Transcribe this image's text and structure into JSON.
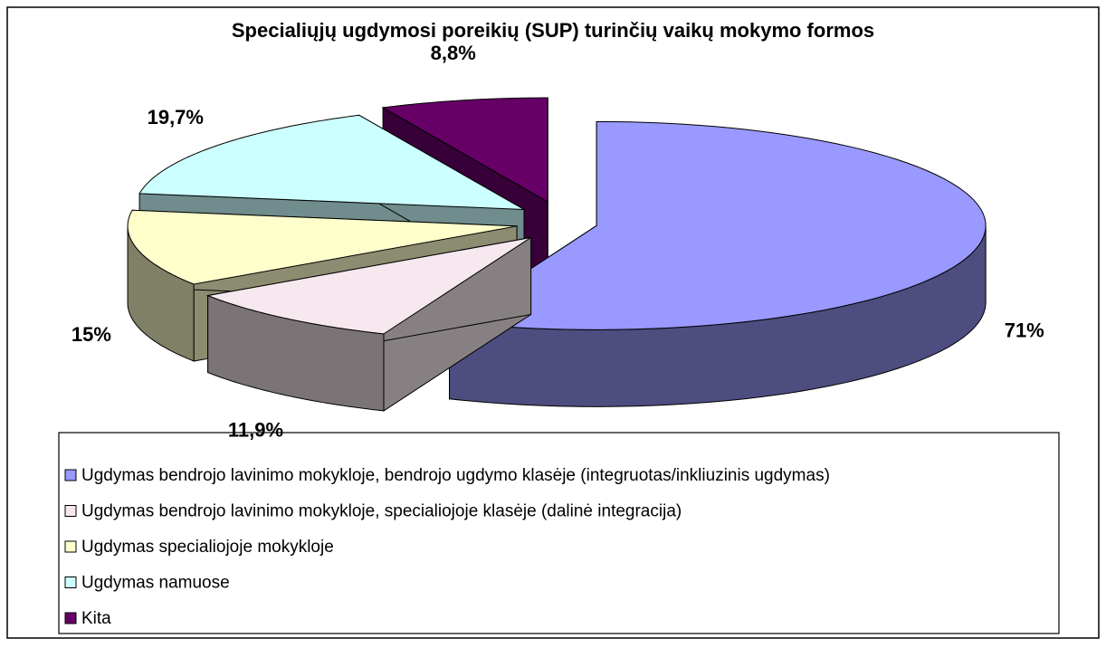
{
  "chart_data": {
    "type": "pie",
    "title": "Specialiųjų ugdymosi poreikių (SUP) turinčių vaikų mokymo formos",
    "categories": [
      "Ugdymas bendrojo lavinimo mokykloje, bendrojo ugdymo klasėje (integruotas/inkliuzinis ugdymas)",
      "Ugdymas bendrojo lavinimo mokykloje, specialiojoje klasėje (dalinė integracija)",
      "Ugdymas specialiojoje mokykloje",
      "Ugdymas namuose",
      "Kita"
    ],
    "values": [
      71,
      11.9,
      15,
      19.7,
      8.8
    ],
    "value_labels": [
      "71%",
      "11,9%",
      "15%",
      "19,7%",
      "8,8%"
    ],
    "colors": [
      "#9999ff",
      "#f6e8ee",
      "#ffffcc",
      "#ccffff",
      "#660066"
    ]
  }
}
